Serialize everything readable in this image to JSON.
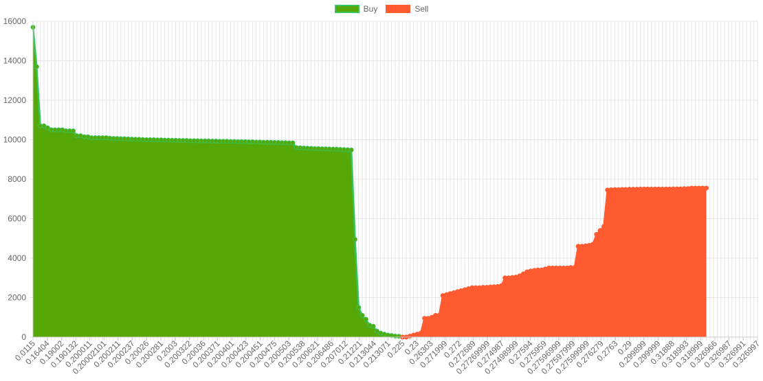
{
  "chart_data": {
    "type": "area",
    "legend_position": "top-center",
    "grid": true,
    "ylim": [
      0,
      16000
    ],
    "yticks": [
      0,
      2000,
      4000,
      6000,
      8000,
      10000,
      12000,
      14000,
      16000
    ],
    "xtick_labels": [
      "0.0115",
      "0.16404",
      "0.19002",
      "0.190132",
      "0.200011",
      "0.20002101",
      "0.200211",
      "0.200237",
      "0.20026",
      "0.200281",
      "0.2003",
      "0.200322",
      "0.20036",
      "0.200371",
      "0.200401",
      "0.200423",
      "0.200451",
      "0.200475",
      "0.200503",
      "0.200538",
      "0.200621",
      "0.206486",
      "0.207012",
      "0.21221",
      "0.213044",
      "0.213071",
      "0.225",
      "0.23",
      "0.26303",
      "0.271999",
      "0.272",
      "0.272689",
      "0.27269999",
      "0.274987",
      "0.27498999",
      "0.27594",
      "0.275959",
      "0.27596999",
      "0.27597999",
      "0.27599999",
      "0.276279",
      "0.2763",
      "0.29",
      "0.299899",
      "0.299999",
      "0.31888",
      "0.318993",
      "0.318999",
      "0.326966",
      "0.326987",
      "0.326991",
      "0.326997"
    ],
    "series": [
      {
        "name": "Buy",
        "color": "#55a805",
        "border_color": "#38c45c",
        "values": [
          15700,
          13700,
          10700,
          10700,
          10600,
          10500,
          10500,
          10500,
          10500,
          10450,
          10450,
          10450,
          10200,
          10200,
          10150,
          10150,
          10100,
          10100,
          10100,
          10100,
          10100,
          10080,
          10060,
          10060,
          10050,
          10050,
          10040,
          10030,
          10020,
          10020,
          10010,
          10000,
          10000,
          10000,
          9990,
          9990,
          9980,
          9980,
          9970,
          9970,
          9960,
          9960,
          9960,
          9950,
          9950,
          9950,
          9940,
          9940,
          9940,
          9930,
          9930,
          9920,
          9920,
          9920,
          9910,
          9910,
          9900,
          9900,
          9900,
          9890,
          9890,
          9880,
          9880,
          9870,
          9870,
          9870,
          9860,
          9860,
          9850,
          9850,
          9840,
          9840,
          9600,
          9590,
          9580,
          9570,
          9560,
          9550,
          9550,
          9540,
          9540,
          9530,
          9520,
          9520,
          9510,
          9500,
          9490,
          9480,
          4950,
          1500,
          1100,
          900,
          600,
          550,
          300,
          200,
          150,
          100,
          80,
          50,
          40,
          null,
          null,
          null,
          null,
          null,
          null,
          null,
          null,
          null,
          null,
          null,
          null,
          null,
          null,
          null,
          null,
          null,
          null,
          null,
          null,
          null,
          null,
          null,
          null,
          null,
          null,
          null,
          null,
          null,
          null,
          null,
          null,
          null,
          null,
          null,
          null,
          null,
          null,
          null,
          null,
          null,
          null,
          null,
          null,
          null,
          null,
          null,
          null,
          null,
          null,
          null,
          null,
          null,
          null,
          null,
          null,
          null,
          null,
          null,
          null,
          null,
          null,
          null,
          null,
          null,
          null,
          null,
          null,
          null,
          null,
          null,
          null,
          null,
          null,
          null,
          null,
          null,
          null,
          null,
          null,
          null,
          null,
          null,
          null,
          null,
          null,
          null,
          null,
          null,
          null,
          null,
          null,
          null,
          null,
          null,
          null,
          null,
          null
        ]
      },
      {
        "name": "Sell",
        "color": "#ff5a30",
        "border_color": "#ff5a30",
        "values": [
          null,
          null,
          null,
          null,
          null,
          null,
          null,
          null,
          null,
          null,
          null,
          null,
          null,
          null,
          null,
          null,
          null,
          null,
          null,
          null,
          null,
          null,
          null,
          null,
          null,
          null,
          null,
          null,
          null,
          null,
          null,
          null,
          null,
          null,
          null,
          null,
          null,
          null,
          null,
          null,
          null,
          null,
          null,
          null,
          null,
          null,
          null,
          null,
          null,
          null,
          null,
          null,
          null,
          null,
          null,
          null,
          null,
          null,
          null,
          null,
          null,
          null,
          null,
          null,
          null,
          null,
          null,
          null,
          null,
          null,
          null,
          null,
          null,
          null,
          null,
          null,
          null,
          null,
          null,
          null,
          null,
          null,
          null,
          null,
          null,
          null,
          null,
          null,
          null,
          null,
          null,
          null,
          null,
          null,
          null,
          null,
          null,
          null,
          null,
          null,
          null,
          0,
          0,
          50,
          100,
          150,
          200,
          950,
          950,
          1000,
          1100,
          1100,
          2100,
          2150,
          2200,
          2250,
          2300,
          2350,
          2400,
          2450,
          2500,
          2500,
          2500,
          2520,
          2520,
          2540,
          2550,
          2560,
          2600,
          3000,
          3000,
          3020,
          3040,
          3100,
          3200,
          3300,
          3350,
          3380,
          3400,
          3400,
          3450,
          3500,
          3500,
          3500,
          3500,
          3500,
          3500,
          3520,
          3520,
          4600,
          4600,
          4620,
          4650,
          4700,
          5200,
          5400,
          5600,
          7450,
          7460,
          7470,
          7470,
          7480,
          7480,
          7490,
          7490,
          7490,
          7500,
          7500,
          7500,
          7500,
          7500,
          7500,
          7500,
          7500,
          7500,
          7510,
          7510,
          7510,
          7520,
          7520,
          7550,
          7550,
          7550,
          7550,
          7550
        ]
      }
    ]
  }
}
